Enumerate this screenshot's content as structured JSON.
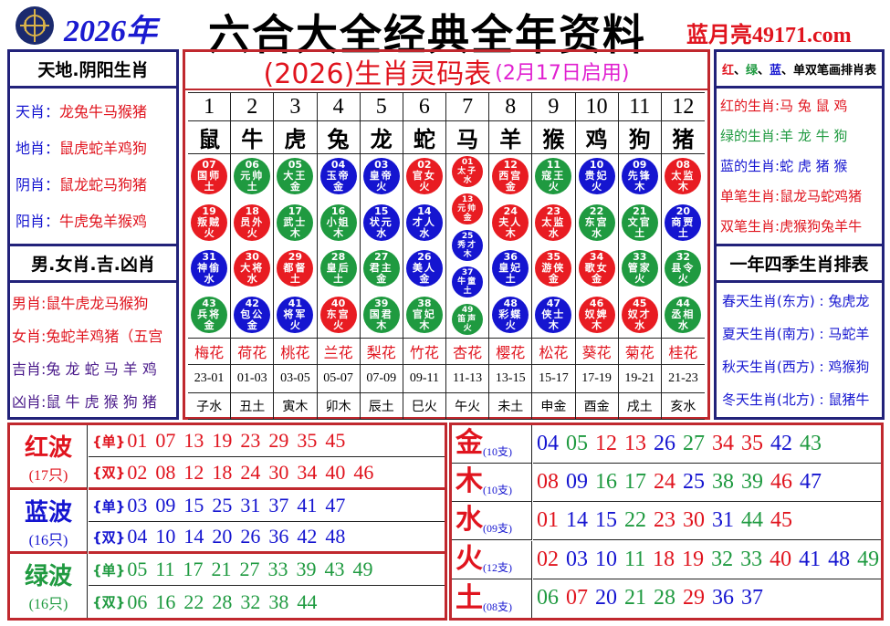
{
  "header": {
    "year": "2026年",
    "title": "六合大全经典全年资料",
    "site": "蓝月亮49171.com"
  },
  "colors": {
    "red": "#e0141e",
    "blue": "#1515d0",
    "green": "#1f9a40",
    "frame_red": "#c0282e",
    "frame_navy": "#22227a"
  },
  "left": {
    "title1": "天地.阴阳生肖",
    "items1": [
      {
        "k": "天肖",
        "v": "龙兔牛马猴猪"
      },
      {
        "k": "地肖",
        "v": "鼠虎蛇羊鸡狗"
      },
      {
        "k": "阴肖",
        "v": "鼠龙蛇马狗猪"
      },
      {
        "k": "阳肖",
        "v": "牛虎兔羊猴鸡"
      }
    ],
    "title2": "男.女肖.吉.凶肖",
    "items2": [
      {
        "k": "男肖",
        "v": "鼠牛虎龙马猴狗"
      },
      {
        "k": "女肖",
        "v": "兔蛇羊鸡猪（五宫"
      },
      {
        "k": "吉肖",
        "v": "兔 龙 蛇 马 羊 鸡"
      },
      {
        "k": "凶肖",
        "v": "鼠 牛 虎 猴 狗 猪"
      }
    ]
  },
  "center": {
    "title": "(2026)生肖灵码表",
    "subtitle": "(2月17日启用)",
    "numbers": [
      "1",
      "2",
      "3",
      "4",
      "5",
      "6",
      "7",
      "8",
      "9",
      "10",
      "11",
      "12"
    ],
    "zodiac": [
      "鼠",
      "牛",
      "虎",
      "兔",
      "龙",
      "蛇",
      "马",
      "羊",
      "猴",
      "鸡",
      "狗",
      "猪"
    ],
    "columns": [
      [
        [
          "07",
          "国师",
          "土",
          "red"
        ],
        [
          "19",
          "叛贼",
          "火",
          "red"
        ],
        [
          "31",
          "神偷",
          "水",
          "blue"
        ],
        [
          "43",
          "兵将",
          "金",
          "green"
        ]
      ],
      [
        [
          "06",
          "元帅",
          "土",
          "green"
        ],
        [
          "18",
          "员外",
          "火",
          "red"
        ],
        [
          "30",
          "大将",
          "水",
          "red"
        ],
        [
          "42",
          "包公",
          "金",
          "blue"
        ]
      ],
      [
        [
          "05",
          "大王",
          "金",
          "green"
        ],
        [
          "17",
          "武士",
          "木",
          "green"
        ],
        [
          "29",
          "都督",
          "土",
          "red"
        ],
        [
          "41",
          "将军",
          "火",
          "blue"
        ]
      ],
      [
        [
          "04",
          "玉帝",
          "金",
          "blue"
        ],
        [
          "16",
          "小姐",
          "木",
          "green"
        ],
        [
          "28",
          "皇后",
          "土",
          "green"
        ],
        [
          "40",
          "东宫",
          "火",
          "red"
        ]
      ],
      [
        [
          "03",
          "皇帝",
          "火",
          "blue"
        ],
        [
          "15",
          "状元",
          "水",
          "blue"
        ],
        [
          "27",
          "君主",
          "金",
          "green"
        ],
        [
          "39",
          "国君",
          "木",
          "green"
        ]
      ],
      [
        [
          "02",
          "官女",
          "火",
          "red"
        ],
        [
          "14",
          "才人",
          "水",
          "blue"
        ],
        [
          "26",
          "美人",
          "金",
          "blue"
        ],
        [
          "38",
          "官妃",
          "木",
          "green"
        ]
      ],
      [
        [
          "01",
          "太子",
          "水",
          "red"
        ],
        [
          "13",
          "元帅",
          "金",
          "red"
        ],
        [
          "25",
          "秀才",
          "木",
          "blue"
        ],
        [
          "37",
          "牛童",
          "土",
          "blue"
        ],
        [
          "49",
          "笛声",
          "火",
          "green"
        ]
      ],
      [
        [
          "12",
          "西宫",
          "金",
          "red"
        ],
        [
          "24",
          "夫人",
          "木",
          "red"
        ],
        [
          "36",
          "皇妃",
          "土",
          "blue"
        ],
        [
          "48",
          "彩蝶",
          "火",
          "blue"
        ]
      ],
      [
        [
          "11",
          "寇王",
          "火",
          "green"
        ],
        [
          "23",
          "太监",
          "水",
          "red"
        ],
        [
          "35",
          "游侠",
          "金",
          "red"
        ],
        [
          "47",
          "侠士",
          "木",
          "blue"
        ]
      ],
      [
        [
          "10",
          "贵妃",
          "火",
          "blue"
        ],
        [
          "22",
          "东宫",
          "水",
          "green"
        ],
        [
          "34",
          "歌女",
          "金",
          "red"
        ],
        [
          "46",
          "奴婢",
          "木",
          "red"
        ]
      ],
      [
        [
          "09",
          "先锋",
          "木",
          "blue"
        ],
        [
          "21",
          "文官",
          "土",
          "green"
        ],
        [
          "33",
          "管家",
          "火",
          "green"
        ],
        [
          "45",
          "奴才",
          "水",
          "red"
        ]
      ],
      [
        [
          "08",
          "太监",
          "木",
          "red"
        ],
        [
          "20",
          "商贾",
          "土",
          "blue"
        ],
        [
          "32",
          "县令",
          "火",
          "green"
        ],
        [
          "44",
          "丞相",
          "水",
          "green"
        ]
      ]
    ],
    "flowers": [
      "梅花",
      "荷花",
      "桃花",
      "兰花",
      "梨花",
      "竹花",
      "杏花",
      "樱花",
      "松花",
      "葵花",
      "菊花",
      "桂花"
    ],
    "hours": [
      "23-01",
      "01-03",
      "03-05",
      "05-07",
      "07-09",
      "09-11",
      "11-13",
      "13-15",
      "15-17",
      "17-19",
      "19-21",
      "21-23"
    ],
    "branches": [
      "子水",
      "丑土",
      "寅木",
      "卯木",
      "辰土",
      "巳火",
      "午火",
      "未土",
      "申金",
      "酉金",
      "戌土",
      "亥水"
    ]
  },
  "right": {
    "title1_parts": [
      {
        "t": "红",
        "c": "red"
      },
      {
        "t": "、",
        "c": "black"
      },
      {
        "t": "绿",
        "c": "green"
      },
      {
        "t": "、",
        "c": "black"
      },
      {
        "t": "蓝",
        "c": "blue"
      },
      {
        "t": "、单双笔画排肖表",
        "c": "black"
      }
    ],
    "items1": [
      {
        "k": "红的生肖",
        "v": "马 兔 鼠 鸡",
        "c": "red"
      },
      {
        "k": "绿的生肖",
        "v": "羊 龙 牛 狗",
        "c": "green"
      },
      {
        "k": "蓝的生肖",
        "v": "蛇 虎 猪 猴",
        "c": "blue"
      },
      {
        "k": "单笔生肖",
        "v": "鼠龙马蛇鸡猪",
        "c": "red"
      },
      {
        "k": "双笔生肖",
        "v": "虎猴狗兔羊牛",
        "c": "red"
      }
    ],
    "title2": "一年四季生肖排表",
    "items2": [
      {
        "k": "春天生肖(东方)",
        "v": "兔虎龙"
      },
      {
        "k": "夏天生肖(南方)",
        "v": "马蛇羊"
      },
      {
        "k": "秋天生肖(西方)",
        "v": "鸡猴狗"
      },
      {
        "k": "冬天生肖(北方)",
        "v": "鼠猪牛"
      }
    ]
  },
  "waves": [
    {
      "name": "红波",
      "count": "(17只)",
      "color": "red",
      "odd_label": "{单}",
      "odd": [
        "01",
        "07",
        "13",
        "19",
        "23",
        "29",
        "35",
        "45"
      ],
      "even_label": "{双}",
      "even": [
        "02",
        "08",
        "12",
        "18",
        "24",
        "30",
        "34",
        "40",
        "46"
      ]
    },
    {
      "name": "蓝波",
      "count": "(16只)",
      "color": "blue",
      "odd_label": "{单}",
      "odd": [
        "03",
        "09",
        "15",
        "25",
        "31",
        "37",
        "41",
        "47"
      ],
      "even_label": "{双}",
      "even": [
        "04",
        "10",
        "14",
        "20",
        "26",
        "36",
        "42",
        "48"
      ]
    },
    {
      "name": "绿波",
      "count": "(16只)",
      "color": "green",
      "odd_label": "{单}",
      "odd": [
        "05",
        "11",
        "17",
        "21",
        "27",
        "33",
        "39",
        "43",
        "49"
      ],
      "even_label": "{双}",
      "even": [
        "06",
        "16",
        "22",
        "28",
        "32",
        "38",
        "44"
      ]
    }
  ],
  "elements": [
    {
      "name": "金",
      "count": "(10支)",
      "nums": [
        "04",
        "05",
        "12",
        "13",
        "26",
        "27",
        "34",
        "35",
        "42",
        "43"
      ]
    },
    {
      "name": "木",
      "count": "(10支)",
      "nums": [
        "08",
        "09",
        "16",
        "17",
        "24",
        "25",
        "38",
        "39",
        "46",
        "47"
      ]
    },
    {
      "name": "水",
      "count": "(09支)",
      "nums": [
        "01",
        "14",
        "15",
        "22",
        "23",
        "30",
        "31",
        "44",
        "45"
      ]
    },
    {
      "name": "火",
      "count": "(12支)",
      "nums": [
        "02",
        "03",
        "10",
        "11",
        "18",
        "19",
        "32",
        "33",
        "40",
        "41",
        "48",
        "49"
      ]
    },
    {
      "name": "土",
      "count": "(08支)",
      "nums": [
        "06",
        "07",
        "20",
        "21",
        "28",
        "29",
        "36",
        "37"
      ]
    }
  ]
}
